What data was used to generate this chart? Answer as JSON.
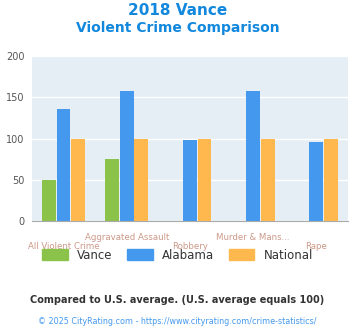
{
  "title_line1": "2018 Vance",
  "title_line2": "Violent Crime Comparison",
  "categories": [
    "All Violent Crime",
    "Aggravated Assault",
    "Robbery",
    "Murder & Mans...",
    "Rape"
  ],
  "cat_labels_row1": [
    "",
    "Aggravated Assault",
    "",
    "Murder & Mans...",
    ""
  ],
  "cat_labels_row2": [
    "All Violent Crime",
    "",
    "Robbery",
    "",
    "Rape"
  ],
  "series": {
    "Vance": [
      50,
      75,
      null,
      null,
      null
    ],
    "Alabama": [
      136,
      158,
      98,
      158,
      96
    ],
    "National": [
      100,
      100,
      100,
      100,
      100
    ]
  },
  "colors": {
    "Vance": "#8bc34a",
    "Alabama": "#4499ee",
    "National": "#ffb84d"
  },
  "ylim": [
    0,
    200
  ],
  "yticks": [
    0,
    50,
    100,
    150,
    200
  ],
  "plot_bg": "#e4eef4",
  "title_color": "#1188dd",
  "xlabel_color": "#cc9988",
  "footnote1": "Compared to U.S. average. (U.S. average equals 100)",
  "footnote2": "© 2025 CityRating.com - https://www.cityrating.com/crime-statistics/",
  "footnote1_color": "#333333",
  "footnote2_color": "#4499ee"
}
